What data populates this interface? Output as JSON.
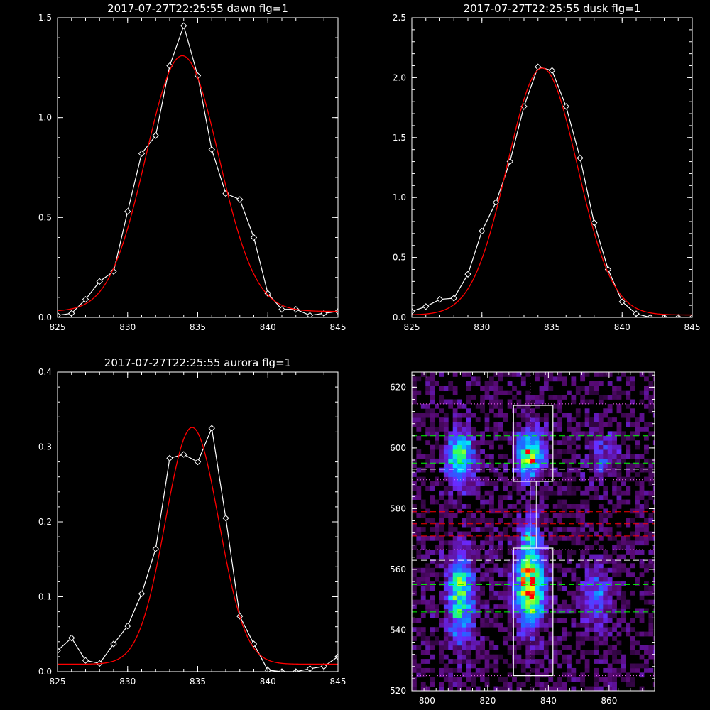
{
  "chart_data": [
    {
      "type": "line",
      "title": "2017-07-27T22:25:55 dawn flg=1",
      "xlim": [
        825,
        845
      ],
      "ylim": [
        0,
        1.5
      ],
      "xticks": [
        825,
        830,
        835,
        840,
        845
      ],
      "yticks": [
        0.0,
        0.5,
        1.0,
        1.5
      ],
      "ytick_labels": [
        "0.0",
        "0.5",
        "1.0",
        "1.5"
      ],
      "series": [
        {
          "kind": "data",
          "color": "#ffffff",
          "marker": "diamond",
          "x": [
            825,
            826,
            827,
            828,
            829,
            830,
            831,
            832,
            833,
            834,
            835,
            836,
            837,
            838,
            839,
            840,
            841,
            842,
            843,
            844,
            845
          ],
          "y": [
            0.01,
            0.02,
            0.09,
            0.18,
            0.23,
            0.53,
            0.82,
            0.91,
            1.26,
            1.46,
            1.21,
            0.84,
            0.62,
            0.59,
            0.4,
            0.12,
            0.04,
            0.04,
            0.01,
            0.02,
            0.03
          ]
        },
        {
          "kind": "fit",
          "color": "#ff0000",
          "gaussian": {
            "amp": 1.28,
            "center": 833.9,
            "sigma": 2.6,
            "offset": 0.03
          }
        }
      ]
    },
    {
      "type": "line",
      "title": "2017-07-27T22:25:55 dusk flg=1",
      "xlim": [
        825,
        845
      ],
      "ylim": [
        0,
        2.5
      ],
      "xticks": [
        825,
        830,
        835,
        840,
        845
      ],
      "yticks": [
        0.0,
        0.5,
        1.0,
        1.5,
        2.0,
        2.5
      ],
      "ytick_labels": [
        "0.0",
        "0.5",
        "1.0",
        "1.5",
        "2.0",
        "2.5"
      ],
      "series": [
        {
          "kind": "data",
          "color": "#ffffff",
          "marker": "diamond",
          "x": [
            825,
            826,
            827,
            828,
            829,
            830,
            831,
            832,
            833,
            834,
            835,
            836,
            837,
            838,
            839,
            840,
            841,
            842,
            843,
            844,
            845
          ],
          "y": [
            0.05,
            0.09,
            0.15,
            0.16,
            0.36,
            0.72,
            0.96,
            1.3,
            1.76,
            2.09,
            2.06,
            1.76,
            1.33,
            0.79,
            0.4,
            0.13,
            0.03,
            0.0,
            0.0,
            0.0,
            0.0
          ]
        },
        {
          "kind": "fit",
          "color": "#ff0000",
          "gaussian": {
            "amp": 2.06,
            "center": 834.3,
            "sigma": 2.5,
            "offset": 0.02
          }
        }
      ]
    },
    {
      "type": "line",
      "title": "2017-07-27T22:25:55 aurora flg=1",
      "xlim": [
        825,
        845
      ],
      "ylim": [
        0,
        0.4
      ],
      "xticks": [
        825,
        830,
        835,
        840,
        845
      ],
      "yticks": [
        0.0,
        0.1,
        0.2,
        0.3,
        0.4
      ],
      "ytick_labels": [
        "0.0",
        "0.1",
        "0.2",
        "0.3",
        "0.4"
      ],
      "series": [
        {
          "kind": "data",
          "color": "#ffffff",
          "marker": "diamond",
          "x": [
            825,
            826,
            827,
            828,
            829,
            830,
            831,
            832,
            833,
            834,
            835,
            836,
            837,
            838,
            839,
            840,
            841,
            842,
            843,
            844,
            845
          ],
          "y": [
            0.028,
            0.045,
            0.015,
            0.011,
            0.037,
            0.061,
            0.104,
            0.164,
            0.285,
            0.29,
            0.28,
            0.325,
            0.205,
            0.074,
            0.037,
            0.002,
            0.0,
            0.0,
            0.004,
            0.007,
            0.02
          ]
        },
        {
          "kind": "fit",
          "color": "#ff0000",
          "gaussian": {
            "amp": 0.316,
            "center": 834.6,
            "sigma": 1.9,
            "offset": 0.01
          }
        }
      ]
    },
    {
      "type": "heatmap",
      "xlim": [
        795,
        875
      ],
      "ylim": [
        520,
        625
      ],
      "xticks": [
        800,
        820,
        840,
        860
      ],
      "yticks": [
        520,
        540,
        560,
        580,
        600,
        620
      ],
      "colorscale": [
        "#000000",
        "#5a0a78",
        "#6a2aff",
        "#1e6aff",
        "#00e0ff",
        "#2cff5a",
        "#ffff00",
        "#ff0000"
      ],
      "emission_blobs": [
        {
          "x": 811,
          "y": 597,
          "sx": 3,
          "sy": 6,
          "amp": 0.65
        },
        {
          "x": 811,
          "y": 551,
          "sx": 3,
          "sy": 10,
          "amp": 0.6
        },
        {
          "x": 834,
          "y": 598,
          "sx": 3.2,
          "sy": 5,
          "amp": 0.75
        },
        {
          "x": 834,
          "y": 555,
          "sx": 3.2,
          "sy": 9,
          "amp": 0.9
        },
        {
          "x": 834,
          "y": 572,
          "sx": 2,
          "sy": 6,
          "amp": 0.25
        },
        {
          "x": 856,
          "y": 551,
          "sx": 3.5,
          "sy": 7,
          "amp": 0.3
        },
        {
          "x": 858,
          "y": 598,
          "sx": 4,
          "sy": 6,
          "amp": 0.2
        }
      ],
      "peak": {
        "x": 834.5,
        "y": 551,
        "color": "#ff0000"
      },
      "boxes": [
        {
          "x0": 828.5,
          "x1": 841.5,
          "y0": 589,
          "y1": 614,
          "color": "#ffffff"
        },
        {
          "x0": 828.5,
          "x1": 841.5,
          "y0": 525,
          "y1": 567,
          "color": "#ffffff"
        }
      ],
      "center_bar": {
        "x0": 834,
        "x1": 836,
        "y0": 567,
        "y1": 589
      },
      "vline": {
        "x": 834,
        "color": "#ff66ff",
        "style": "dotted"
      },
      "hlines": [
        {
          "y": 614.5,
          "color": "#ff66ff",
          "style": "dotted"
        },
        {
          "y": 604,
          "color": "#00ff00",
          "style": "dashed"
        },
        {
          "y": 595,
          "color": "#00ff00",
          "style": "dashed"
        },
        {
          "y": 593,
          "color": "#ffffff",
          "style": "dashed"
        },
        {
          "y": 589.5,
          "color": "#ff66ff",
          "style": "dotted"
        },
        {
          "y": 579,
          "color": "#ff0000",
          "style": "dashed"
        },
        {
          "y": 575,
          "color": "#ff0000",
          "style": "dashed"
        },
        {
          "y": 571,
          "color": "#ff0000",
          "style": "dashed"
        },
        {
          "y": 566.5,
          "color": "#ff66ff",
          "style": "dotted"
        },
        {
          "y": 563,
          "color": "#ffffff",
          "style": "dashed"
        },
        {
          "y": 555,
          "color": "#00ff00",
          "style": "dashed"
        },
        {
          "y": 546,
          "color": "#00ff00",
          "style": "dashed"
        },
        {
          "y": 525,
          "color": "#ff66ff",
          "style": "dotted"
        }
      ]
    }
  ]
}
